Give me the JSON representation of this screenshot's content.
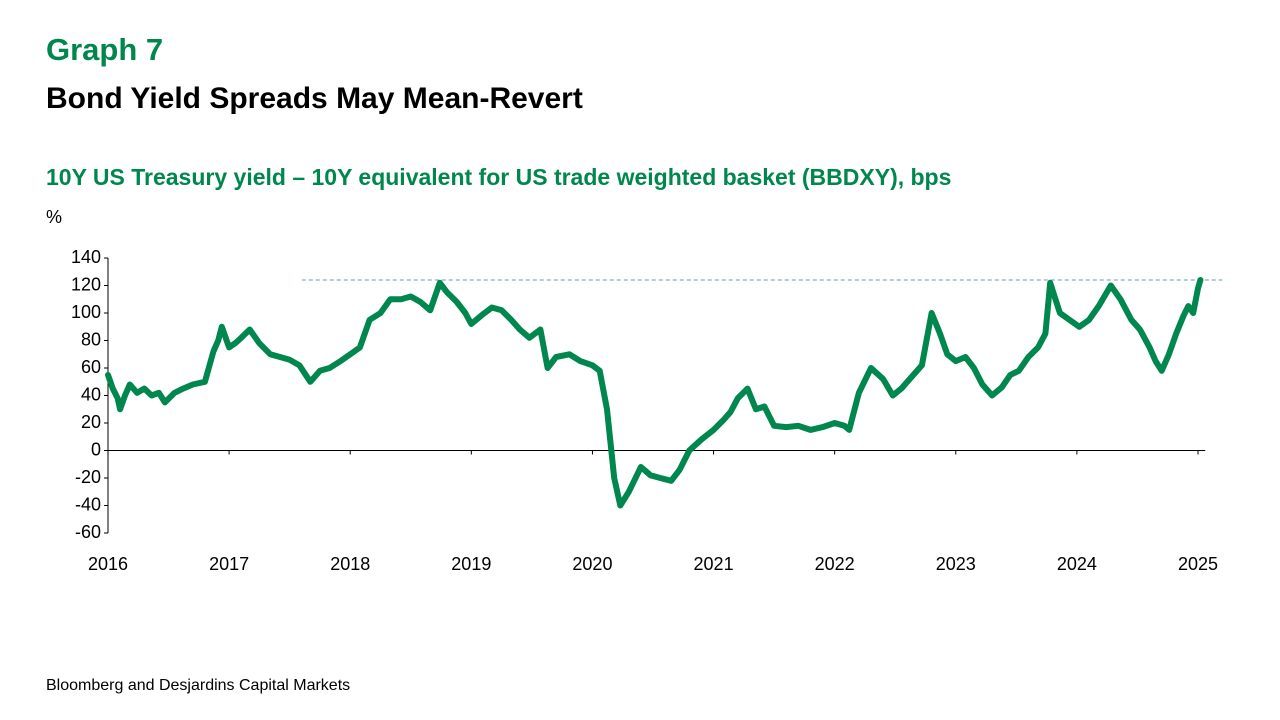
{
  "chart_data": {
    "type": "line",
    "label": "Graph 7",
    "title": "Bond Yield Spreads May Mean-Revert",
    "subtitle": "10Y US Treasury yield – 10Y equivalent for US trade weighted basket (BBDXY), bps",
    "y_label": "%",
    "source": "Bloomberg and Desjardins Capital Markets",
    "color": "#00874e",
    "x": [
      2016.0,
      2016.04,
      2016.08,
      2016.1,
      2016.14,
      2016.18,
      2016.24,
      2016.3,
      2016.36,
      2016.42,
      2016.47,
      2016.55,
      2016.62,
      2016.7,
      2016.8,
      2016.87,
      2016.91,
      2016.94,
      2017.0,
      2017.05,
      2017.1,
      2017.17,
      2017.25,
      2017.34,
      2017.42,
      2017.5,
      2017.58,
      2017.67,
      2017.75,
      2017.83,
      2017.92,
      2018.0,
      2018.08,
      2018.16,
      2018.25,
      2018.33,
      2018.42,
      2018.5,
      2018.58,
      2018.66,
      2018.74,
      2018.8,
      2018.88,
      2018.95,
      2019.0,
      2019.08,
      2019.17,
      2019.25,
      2019.33,
      2019.4,
      2019.48,
      2019.57,
      2019.63,
      2019.7,
      2019.81,
      2019.9,
      2020.0,
      2020.06,
      2020.12,
      2020.18,
      2020.23,
      2020.3,
      2020.4,
      2020.48,
      2020.56,
      2020.65,
      2020.72,
      2020.8,
      2020.9,
      2021.0,
      2021.08,
      2021.14,
      2021.2,
      2021.28,
      2021.35,
      2021.42,
      2021.5,
      2021.6,
      2021.7,
      2021.8,
      2021.9,
      2022.0,
      2022.08,
      2022.12,
      2022.2,
      2022.3,
      2022.4,
      2022.48,
      2022.55,
      2022.65,
      2022.72,
      2022.8,
      2022.87,
      2022.93,
      2023.0,
      2023.08,
      2023.15,
      2023.22,
      2023.3,
      2023.38,
      2023.45,
      2023.52,
      2023.6,
      2023.68,
      2023.74,
      2023.78,
      2023.86,
      2023.94,
      2024.02,
      2024.1,
      2024.18,
      2024.28,
      2024.36,
      2024.45,
      2024.52,
      2024.6,
      2024.65,
      2024.7,
      2024.76,
      2024.82,
      2024.88,
      2024.92,
      2024.96,
      2025.0,
      2025.02
    ],
    "values": [
      55,
      45,
      38,
      30,
      40,
      48,
      42,
      45,
      40,
      42,
      35,
      42,
      45,
      48,
      50,
      72,
      80,
      90,
      75,
      78,
      82,
      88,
      78,
      70,
      68,
      66,
      62,
      50,
      58,
      60,
      65,
      70,
      75,
      95,
      100,
      110,
      110,
      112,
      108,
      102,
      122,
      115,
      108,
      100,
      92,
      98,
      104,
      102,
      95,
      88,
      82,
      88,
      60,
      68,
      70,
      65,
      62,
      58,
      30,
      -20,
      -40,
      -30,
      -12,
      -18,
      -20,
      -22,
      -14,
      0,
      8,
      15,
      22,
      28,
      38,
      45,
      30,
      32,
      18,
      17,
      18,
      15,
      17,
      20,
      18,
      15,
      42,
      60,
      52,
      40,
      45,
      55,
      62,
      100,
      85,
      70,
      65,
      68,
      60,
      48,
      40,
      46,
      55,
      58,
      68,
      75,
      85,
      122,
      100,
      95,
      90,
      95,
      105,
      120,
      110,
      95,
      88,
      75,
      65,
      58,
      70,
      85,
      98,
      105,
      100,
      118,
      124
    ],
    "xlim": [
      2016,
      2025.2
    ],
    "xticks": [
      2016,
      2017,
      2018,
      2019,
      2020,
      2021,
      2022,
      2023,
      2024,
      2025
    ],
    "ylim": [
      -60,
      140
    ],
    "yticks": [
      -60,
      -40,
      -20,
      0,
      20,
      40,
      60,
      80,
      100,
      120,
      140
    ],
    "reference_line": {
      "y": 124,
      "x": [
        2017.6,
        2025.2
      ]
    },
    "grid": false
  }
}
